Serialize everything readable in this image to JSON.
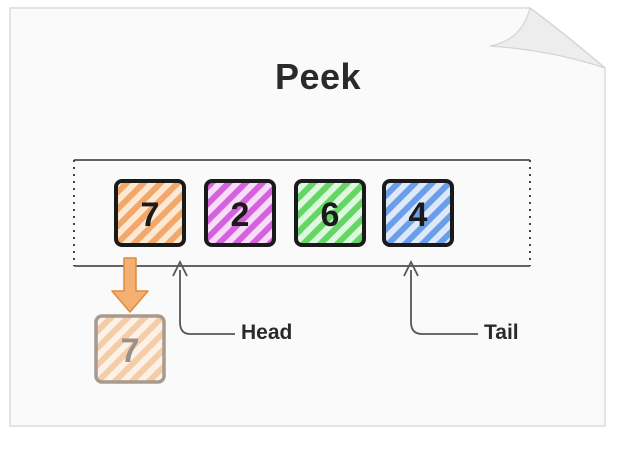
{
  "title": "Peek",
  "queue": [
    {
      "value": "7",
      "color": "#f2a86b"
    },
    {
      "value": "2",
      "color": "#d562dd"
    },
    {
      "value": "6",
      "color": "#63d663"
    },
    {
      "value": "4",
      "color": "#6a9ee8"
    }
  ],
  "peeked": {
    "value": "7",
    "color": "#f2a86b"
  },
  "arrow_color": "#f0a55c",
  "labels": {
    "head": "Head",
    "tail": "Tail"
  }
}
